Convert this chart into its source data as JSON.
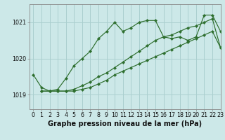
{
  "title": "Graphe pression niveau de la mer (hPa)",
  "bg_color": "#cce8e8",
  "grid_color": "#aacfcf",
  "line_color": "#2d6e2d",
  "marker_color": "#2d6e2d",
  "xlim": [
    -0.5,
    23
  ],
  "ylim": [
    1018.6,
    1021.5
  ],
  "yticks": [
    1019,
    1020,
    1021
  ],
  "xticks": [
    0,
    1,
    2,
    3,
    4,
    5,
    6,
    7,
    8,
    9,
    10,
    11,
    12,
    13,
    14,
    15,
    16,
    17,
    18,
    19,
    20,
    21,
    22,
    23
  ],
  "series": [
    {
      "x": [
        0,
        1,
        2,
        3,
        4,
        5,
        6,
        7,
        8,
        9,
        10,
        11,
        12,
        13,
        14,
        15,
        16,
        17,
        18,
        19,
        20,
        21,
        22,
        23
      ],
      "y": [
        1019.55,
        1019.2,
        1019.1,
        1019.15,
        1019.45,
        1019.8,
        1020.0,
        1020.2,
        1020.55,
        1020.75,
        1021.0,
        1020.75,
        1020.85,
        1021.0,
        1021.05,
        1021.05,
        1020.6,
        1020.55,
        1020.6,
        1020.5,
        1020.6,
        1021.2,
        1021.2,
        1020.75
      ]
    },
    {
      "x": [
        1,
        2,
        3,
        4,
        5,
        6,
        7,
        8,
        9,
        10,
        11,
        12,
        13,
        14,
        15,
        16,
        17,
        18,
        19,
        20,
        21,
        22,
        23
      ],
      "y": [
        1019.1,
        1019.1,
        1019.1,
        1019.1,
        1019.15,
        1019.25,
        1019.35,
        1019.5,
        1019.6,
        1019.75,
        1019.9,
        1020.05,
        1020.2,
        1020.35,
        1020.5,
        1020.6,
        1020.65,
        1020.75,
        1020.85,
        1020.9,
        1021.0,
        1021.1,
        1020.3
      ]
    },
    {
      "x": [
        1,
        2,
        3,
        4,
        5,
        6,
        7,
        8,
        9,
        10,
        11,
        12,
        13,
        14,
        15,
        16,
        17,
        18,
        19,
        20,
        21,
        22,
        23
      ],
      "y": [
        1019.1,
        1019.1,
        1019.1,
        1019.1,
        1019.1,
        1019.15,
        1019.2,
        1019.3,
        1019.4,
        1019.55,
        1019.65,
        1019.75,
        1019.85,
        1019.95,
        1020.05,
        1020.15,
        1020.25,
        1020.35,
        1020.45,
        1020.55,
        1020.65,
        1020.75,
        1020.3
      ]
    }
  ],
  "tick_fontsize": 5.8,
  "label_fontsize": 7.0
}
